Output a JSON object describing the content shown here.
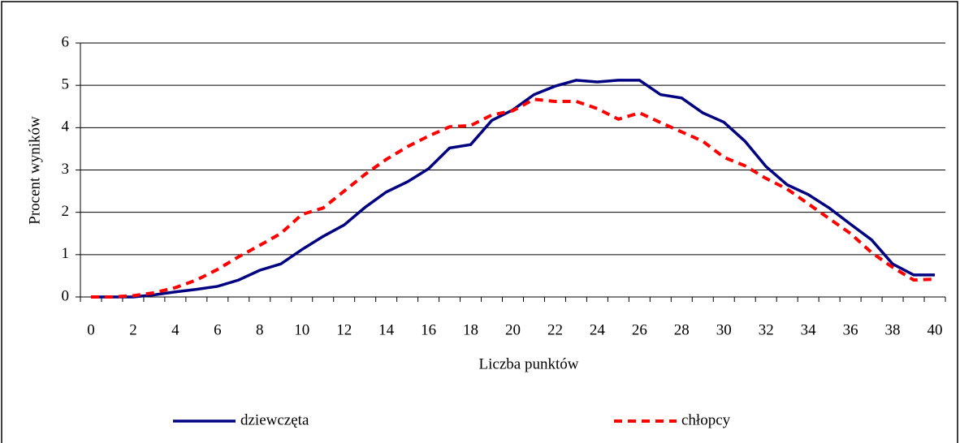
{
  "chart_data": {
    "type": "line",
    "xlabel": "Liczba punktów",
    "ylabel": "Procent wyników",
    "categories": [
      "0",
      null,
      "2",
      null,
      "4",
      null,
      "6",
      null,
      "8",
      null,
      "10",
      null,
      "12",
      null,
      "14",
      null,
      "16",
      null,
      "18",
      null,
      "20",
      null,
      "22",
      null,
      "24",
      null,
      "26",
      null,
      "28",
      null,
      "30",
      null,
      "32",
      null,
      "34",
      null,
      "36",
      null,
      "38",
      null,
      "40"
    ],
    "series": [
      {
        "name": "dziewczęta",
        "color": "#000080",
        "dash": "solid",
        "values": [
          0,
          0,
          0,
          0.05,
          0.12,
          0.18,
          0.25,
          0.4,
          0.63,
          0.78,
          1.12,
          1.43,
          1.7,
          2.12,
          2.48,
          2.72,
          3.03,
          3.52,
          3.6,
          4.17,
          4.42,
          4.78,
          4.98,
          5.12,
          5.08,
          5.12,
          5.12,
          4.78,
          4.7,
          4.35,
          4.13,
          3.68,
          3.08,
          2.65,
          2.42,
          2.1,
          1.72,
          1.35,
          0.78,
          0.52,
          0.52
        ]
      },
      {
        "name": "chłopcy",
        "color": "#ff0000",
        "dash": "dashed",
        "values": [
          0,
          0,
          0.03,
          0.1,
          0.22,
          0.4,
          0.65,
          0.95,
          1.22,
          1.5,
          1.95,
          2.1,
          2.5,
          2.9,
          3.25,
          3.55,
          3.8,
          4.02,
          4.05,
          4.3,
          4.4,
          4.67,
          4.62,
          4.62,
          4.45,
          4.2,
          4.35,
          4.12,
          3.9,
          3.68,
          3.3,
          3.1,
          2.8,
          2.55,
          2.2,
          1.85,
          1.5,
          1.05,
          0.7,
          0.4,
          0.42
        ]
      }
    ],
    "ylim": [
      0,
      6
    ],
    "yticks": [
      0,
      1,
      2,
      3,
      4,
      5,
      6
    ],
    "grid": true,
    "legend": "bottom"
  }
}
